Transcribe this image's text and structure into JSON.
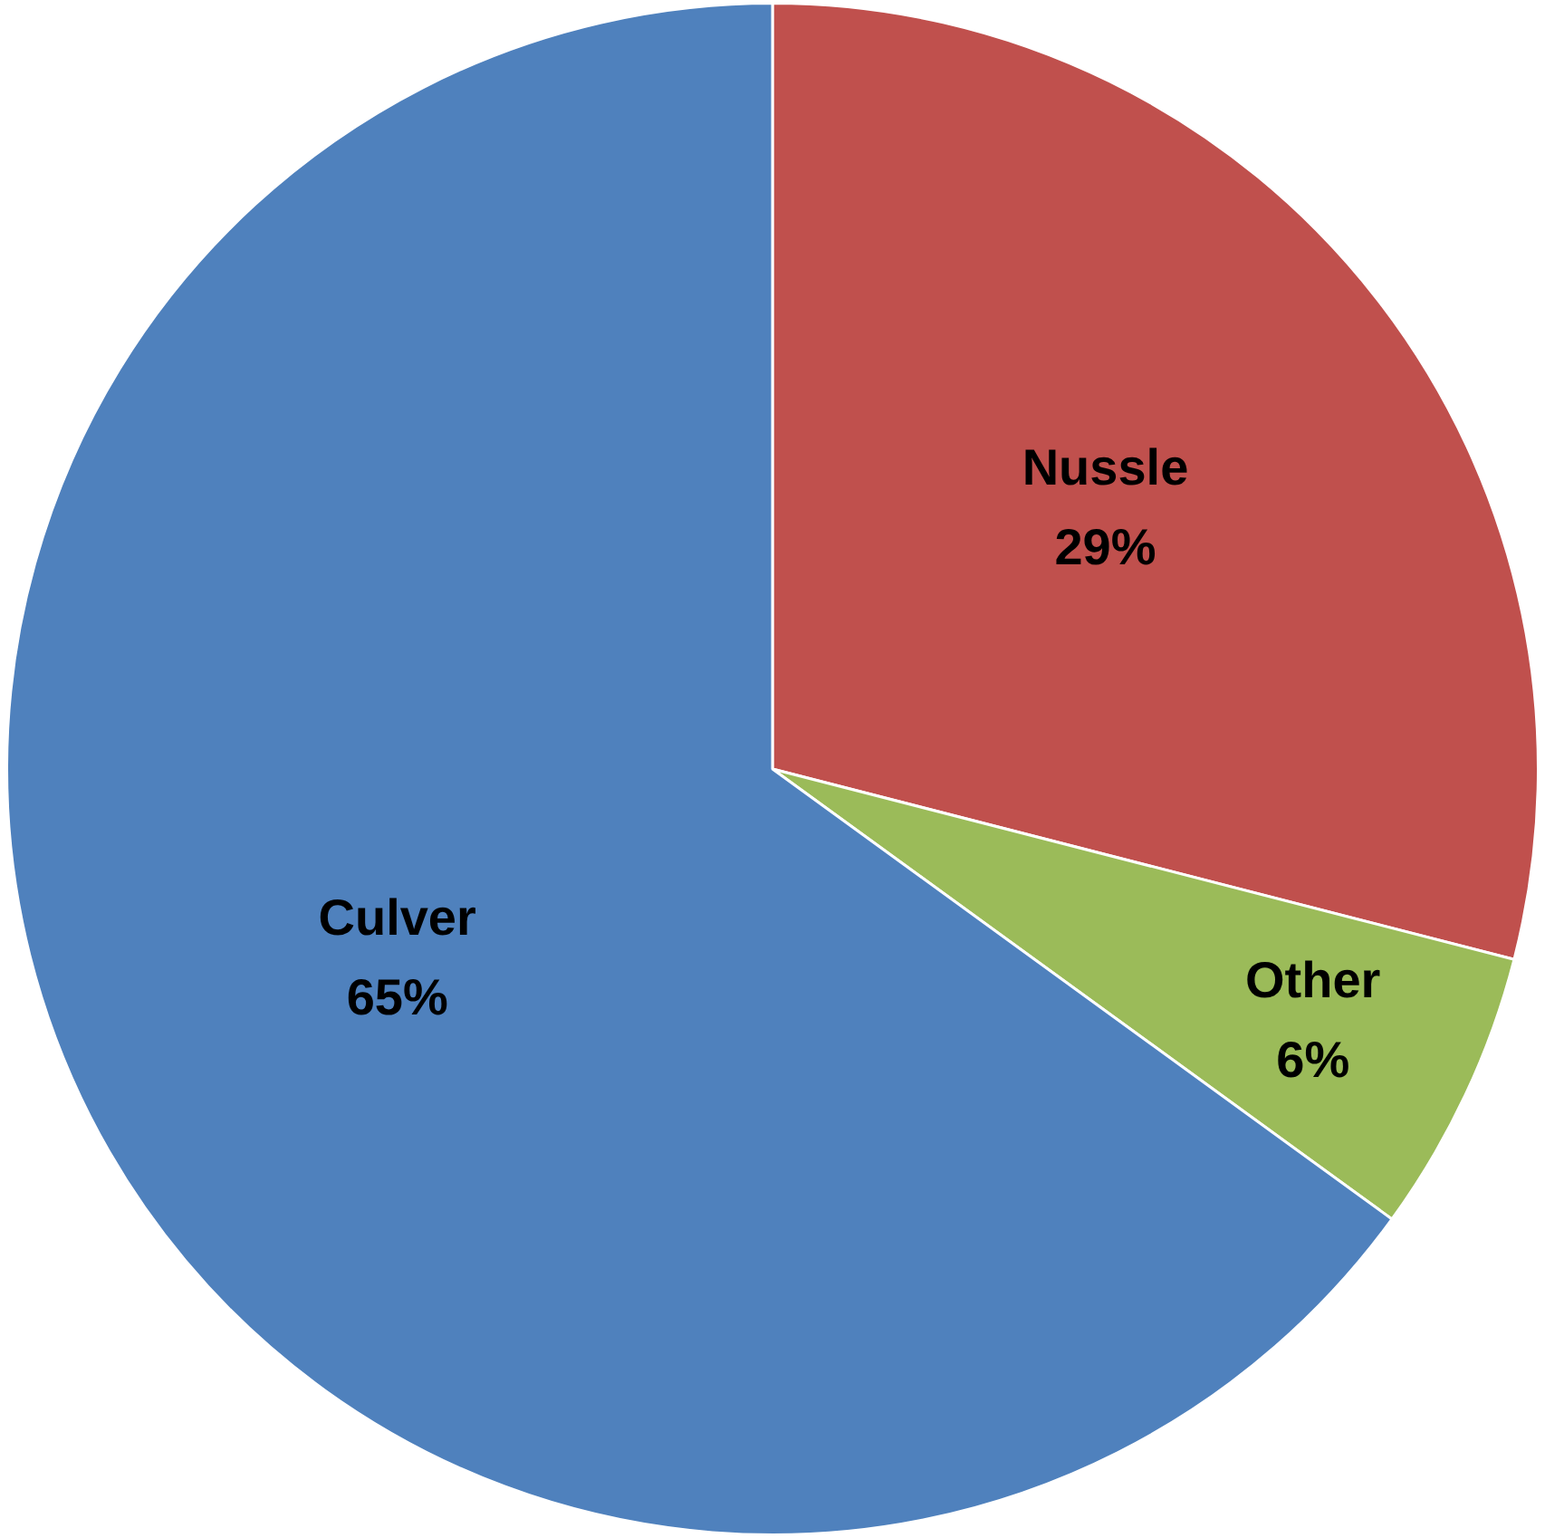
{
  "chart_data": {
    "type": "pie",
    "categories": [
      "Nussle",
      "Other",
      "Culver"
    ],
    "values": [
      29,
      6,
      65
    ],
    "colors": [
      "#c0504d",
      "#9bbb59",
      "#4f81bd"
    ],
    "value_labels": [
      "29%",
      "6%",
      "65%"
    ]
  }
}
